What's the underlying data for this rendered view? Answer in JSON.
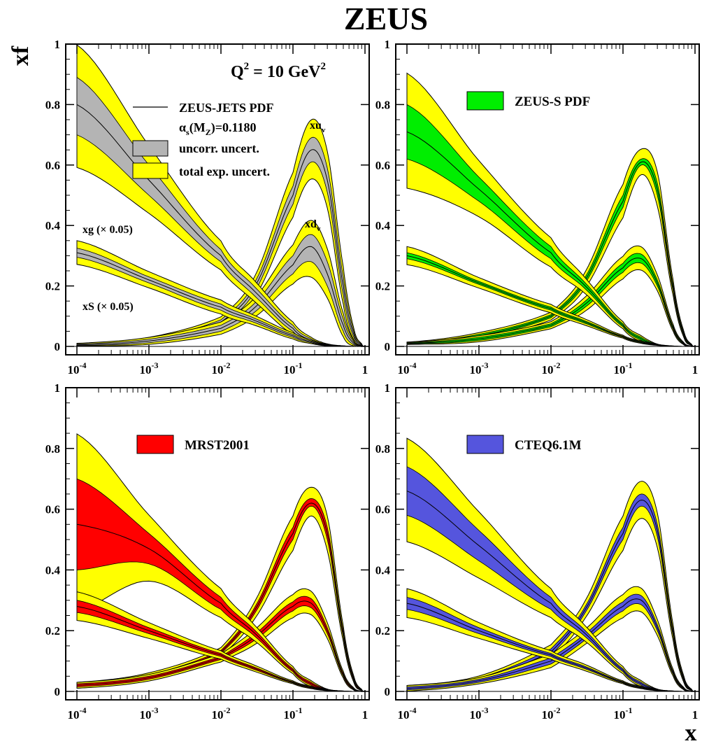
{
  "figure": {
    "title": "ZEUS",
    "y_axis_label": "xf",
    "x_axis_label": "x"
  },
  "colors": {
    "total_band": "#ffff00",
    "uncorr_band": "#b4b4b4",
    "zeus_s": "#00ee00",
    "mrst": "#ff0000",
    "cteq": "#5555dd",
    "line": "#000000"
  },
  "legend": {
    "scale_label": "Q",
    "scale_sup": "2",
    "scale_value": " = 10 GeV",
    "scale_unit_sup": "2",
    "zeus_jets": "ZEUS-JETS PDF",
    "alpha_s_text": "α",
    "alpha_s_sub": "s",
    "alpha_s_mid": "(M",
    "alpha_s_sub2": "Z",
    "alpha_s_value": ")=0.1180",
    "uncorr": "uncorr. uncert.",
    "total": "total exp. uncert."
  },
  "curve_labels": {
    "xuv": "xu",
    "xuv_sub": "v",
    "xdv": "xd",
    "xdv_sub": "v",
    "xg": "xg (× 0.05)",
    "xS": "xS (× 0.05)"
  },
  "x_ticks": [
    {
      "value": 0.0001,
      "base": "10",
      "exp": "-4"
    },
    {
      "value": 0.001,
      "base": "10",
      "exp": "-3"
    },
    {
      "value": 0.01,
      "base": "10",
      "exp": "-2"
    },
    {
      "value": 0.1,
      "base": "10",
      "exp": "-1"
    },
    {
      "value": 1,
      "base": "1",
      "exp": ""
    }
  ],
  "y_ticks": [
    "0",
    "0.2",
    "0.4",
    "0.6",
    "0.8",
    "1"
  ],
  "chart_data": [
    {
      "type": "area",
      "panel": "top-left",
      "comparison_label": "",
      "xscale": "log",
      "xlim": [
        0.0001,
        1
      ],
      "ylim": [
        0,
        1
      ],
      "x": [
        0.0001,
        0.001,
        0.01,
        0.03,
        0.1,
        0.18,
        0.3,
        0.5,
        0.7,
        0.9,
        1
      ],
      "series": [
        {
          "name": "xu",
          "central": [
            0.005,
            0.02,
            0.08,
            0.2,
            0.5,
            0.65,
            0.55,
            0.2,
            0.04,
            0.005,
            0
          ],
          "band_low": [
            0.003,
            0.015,
            0.072,
            0.185,
            0.47,
            0.61,
            0.51,
            0.17,
            0.03,
            0.003,
            0
          ],
          "band_high": [
            0.007,
            0.025,
            0.088,
            0.215,
            0.53,
            0.69,
            0.59,
            0.23,
            0.05,
            0.007,
            0
          ]
        },
        {
          "name": "xd",
          "central": [
            0.005,
            0.018,
            0.06,
            0.13,
            0.27,
            0.33,
            0.24,
            0.07,
            0.01,
            0.001,
            0
          ],
          "band_low": [
            0.003,
            0.012,
            0.05,
            0.115,
            0.24,
            0.28,
            0.2,
            0.05,
            0.005,
            0.0005,
            0
          ],
          "band_high": [
            0.008,
            0.024,
            0.07,
            0.145,
            0.3,
            0.37,
            0.28,
            0.09,
            0.015,
            0.002,
            0
          ]
        },
        {
          "name": "xg (× 0.05)",
          "central": [
            0.8,
            0.55,
            0.3,
            0.18,
            0.06,
            0.02,
            0.005,
            0.001,
            0,
            0,
            0
          ],
          "band_low": [
            0.7,
            0.5,
            0.28,
            0.165,
            0.05,
            0.015,
            0.003,
            0.0005,
            0,
            0,
            0
          ],
          "band_high": [
            0.89,
            0.6,
            0.32,
            0.195,
            0.07,
            0.025,
            0.007,
            0.0015,
            0,
            0,
            0
          ]
        },
        {
          "name": "xS (× 0.05)",
          "central": [
            0.31,
            0.22,
            0.13,
            0.085,
            0.035,
            0.015,
            0.005,
            0.001,
            0,
            0,
            0
          ],
          "band_low": [
            0.295,
            0.21,
            0.12,
            0.078,
            0.03,
            0.012,
            0.004,
            0.0005,
            0,
            0,
            0
          ],
          "band_high": [
            0.325,
            0.23,
            0.14,
            0.092,
            0.04,
            0.018,
            0.006,
            0.0015,
            0,
            0,
            0
          ]
        }
      ]
    },
    {
      "type": "area",
      "panel": "top-right",
      "comparison_label": "ZEUS-S PDF",
      "xscale": "log",
      "xlim": [
        0.0001,
        1
      ],
      "ylim": [
        0,
        1
      ],
      "x": [
        0.0001,
        0.001,
        0.01,
        0.03,
        0.1,
        0.18,
        0.3,
        0.5,
        0.7,
        0.9,
        1
      ],
      "series": [
        {
          "name": "xu",
          "central": [
            0.01,
            0.035,
            0.1,
            0.22,
            0.48,
            0.61,
            0.52,
            0.19,
            0.04,
            0.005,
            0
          ],
          "band_low": [
            0.008,
            0.03,
            0.095,
            0.21,
            0.46,
            0.6,
            0.5,
            0.18,
            0.035,
            0.004,
            0
          ],
          "band_high": [
            0.012,
            0.04,
            0.105,
            0.23,
            0.5,
            0.62,
            0.54,
            0.2,
            0.045,
            0.006,
            0
          ]
        },
        {
          "name": "xd",
          "central": [
            0.01,
            0.025,
            0.07,
            0.14,
            0.26,
            0.29,
            0.21,
            0.06,
            0.009,
            0.001,
            0
          ],
          "band_low": [
            0.008,
            0.02,
            0.065,
            0.13,
            0.245,
            0.275,
            0.2,
            0.055,
            0.007,
            0.0008,
            0
          ],
          "band_high": [
            0.012,
            0.03,
            0.075,
            0.15,
            0.275,
            0.305,
            0.22,
            0.065,
            0.011,
            0.0012,
            0
          ]
        },
        {
          "name": "xg (× 0.05)",
          "central": [
            0.71,
            0.52,
            0.31,
            0.2,
            0.07,
            0.025,
            0.006,
            0.001,
            0,
            0,
            0
          ],
          "band_low": [
            0.62,
            0.48,
            0.29,
            0.19,
            0.065,
            0.02,
            0.005,
            0.0008,
            0,
            0,
            0
          ],
          "band_high": [
            0.8,
            0.56,
            0.33,
            0.21,
            0.075,
            0.03,
            0.007,
            0.0012,
            0,
            0,
            0
          ]
        },
        {
          "name": "xS (× 0.05)",
          "central": [
            0.3,
            0.21,
            0.125,
            0.08,
            0.032,
            0.014,
            0.005,
            0.001,
            0,
            0,
            0
          ],
          "band_low": [
            0.29,
            0.205,
            0.12,
            0.076,
            0.03,
            0.012,
            0.004,
            0.0008,
            0,
            0,
            0
          ],
          "band_high": [
            0.31,
            0.215,
            0.13,
            0.084,
            0.034,
            0.016,
            0.006,
            0.0012,
            0,
            0,
            0
          ]
        }
      ]
    },
    {
      "type": "area",
      "panel": "bottom-left",
      "comparison_label": "MRST2001",
      "xscale": "log",
      "xlim": [
        0.0001,
        1
      ],
      "ylim": [
        0,
        1
      ],
      "x": [
        0.0001,
        0.001,
        0.01,
        0.03,
        0.1,
        0.18,
        0.3,
        0.5,
        0.7,
        0.9,
        1
      ],
      "series": [
        {
          "name": "xu",
          "central": [
            0.02,
            0.05,
            0.13,
            0.27,
            0.52,
            0.62,
            0.52,
            0.19,
            0.04,
            0.005,
            0
          ],
          "band_low": [
            0.015,
            0.045,
            0.125,
            0.26,
            0.5,
            0.61,
            0.5,
            0.18,
            0.035,
            0.004,
            0
          ],
          "band_high": [
            0.025,
            0.055,
            0.135,
            0.28,
            0.54,
            0.635,
            0.54,
            0.2,
            0.045,
            0.006,
            0
          ]
        },
        {
          "name": "xd",
          "central": [
            0.02,
            0.045,
            0.11,
            0.18,
            0.28,
            0.29,
            0.2,
            0.055,
            0.008,
            0.001,
            0
          ],
          "band_low": [
            0.015,
            0.04,
            0.105,
            0.17,
            0.265,
            0.275,
            0.19,
            0.05,
            0.006,
            0.0008,
            0
          ],
          "band_high": [
            0.025,
            0.05,
            0.115,
            0.19,
            0.295,
            0.305,
            0.21,
            0.06,
            0.01,
            0.0012,
            0
          ]
        },
        {
          "name": "xg (× 0.05)",
          "central": [
            0.55,
            0.47,
            0.29,
            0.19,
            0.07,
            0.025,
            0.006,
            0.001,
            0,
            0,
            0
          ],
          "band_low": [
            0.4,
            0.42,
            0.27,
            0.18,
            0.065,
            0.02,
            0.005,
            0.0008,
            0,
            0,
            0
          ],
          "band_high": [
            0.7,
            0.52,
            0.31,
            0.2,
            0.075,
            0.03,
            0.007,
            0.0012,
            0,
            0,
            0
          ]
        },
        {
          "name": "xS (× 0.05)",
          "central": [
            0.28,
            0.2,
            0.12,
            0.075,
            0.03,
            0.013,
            0.004,
            0.001,
            0,
            0,
            0
          ],
          "band_low": [
            0.26,
            0.19,
            0.115,
            0.071,
            0.028,
            0.011,
            0.003,
            0.0008,
            0,
            0,
            0
          ],
          "band_high": [
            0.3,
            0.21,
            0.125,
            0.079,
            0.032,
            0.015,
            0.005,
            0.0012,
            0,
            0,
            0
          ]
        }
      ]
    },
    {
      "type": "area",
      "panel": "bottom-right",
      "comparison_label": "CTEQ6.1M",
      "xscale": "log",
      "xlim": [
        0.0001,
        1
      ],
      "ylim": [
        0,
        1
      ],
      "x": [
        0.0001,
        0.001,
        0.01,
        0.03,
        0.1,
        0.18,
        0.3,
        0.5,
        0.7,
        0.9,
        1
      ],
      "series": [
        {
          "name": "xu",
          "central": [
            0.01,
            0.04,
            0.13,
            0.27,
            0.52,
            0.63,
            0.53,
            0.19,
            0.04,
            0.005,
            0
          ],
          "band_low": [
            0.005,
            0.035,
            0.12,
            0.26,
            0.5,
            0.61,
            0.51,
            0.18,
            0.035,
            0.004,
            0
          ],
          "band_high": [
            0.015,
            0.045,
            0.14,
            0.28,
            0.54,
            0.65,
            0.55,
            0.2,
            0.045,
            0.006,
            0
          ]
        },
        {
          "name": "xd",
          "central": [
            0.01,
            0.035,
            0.1,
            0.18,
            0.28,
            0.3,
            0.21,
            0.06,
            0.009,
            0.001,
            0
          ],
          "band_low": [
            0.005,
            0.03,
            0.09,
            0.17,
            0.265,
            0.285,
            0.2,
            0.055,
            0.007,
            0.0008,
            0
          ],
          "band_high": [
            0.015,
            0.04,
            0.11,
            0.19,
            0.295,
            0.315,
            0.22,
            0.065,
            0.011,
            0.0012,
            0
          ]
        },
        {
          "name": "xg (× 0.05)",
          "central": [
            0.66,
            0.48,
            0.29,
            0.19,
            0.07,
            0.025,
            0.006,
            0.001,
            0,
            0,
            0
          ],
          "band_low": [
            0.58,
            0.43,
            0.27,
            0.18,
            0.065,
            0.02,
            0.005,
            0.0008,
            0,
            0,
            0
          ],
          "band_high": [
            0.74,
            0.53,
            0.31,
            0.2,
            0.075,
            0.03,
            0.007,
            0.0012,
            0,
            0,
            0
          ]
        },
        {
          "name": "xS (× 0.05)",
          "central": [
            0.29,
            0.2,
            0.12,
            0.078,
            0.03,
            0.013,
            0.004,
            0.001,
            0,
            0,
            0
          ],
          "band_low": [
            0.27,
            0.19,
            0.115,
            0.074,
            0.028,
            0.011,
            0.003,
            0.0008,
            0,
            0,
            0
          ],
          "band_high": [
            0.31,
            0.21,
            0.125,
            0.082,
            0.032,
            0.015,
            0.005,
            0.0012,
            0,
            0,
            0
          ]
        }
      ]
    }
  ]
}
